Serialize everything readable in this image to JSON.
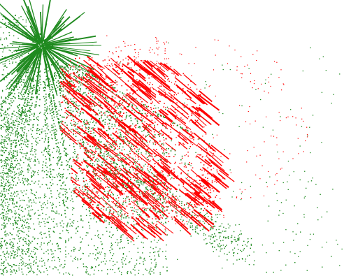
{
  "canvas": {
    "background_color": "#ffffff"
  },
  "layers": [
    {
      "name": "green",
      "color": "#1f8a1f",
      "shapes": [
        "starburst",
        "spray",
        "sparse-field"
      ]
    },
    {
      "name": "red",
      "color": "#ff0000",
      "shapes": [
        "diagonal-streak-cluster",
        "dotted-fringe"
      ]
    }
  ]
}
